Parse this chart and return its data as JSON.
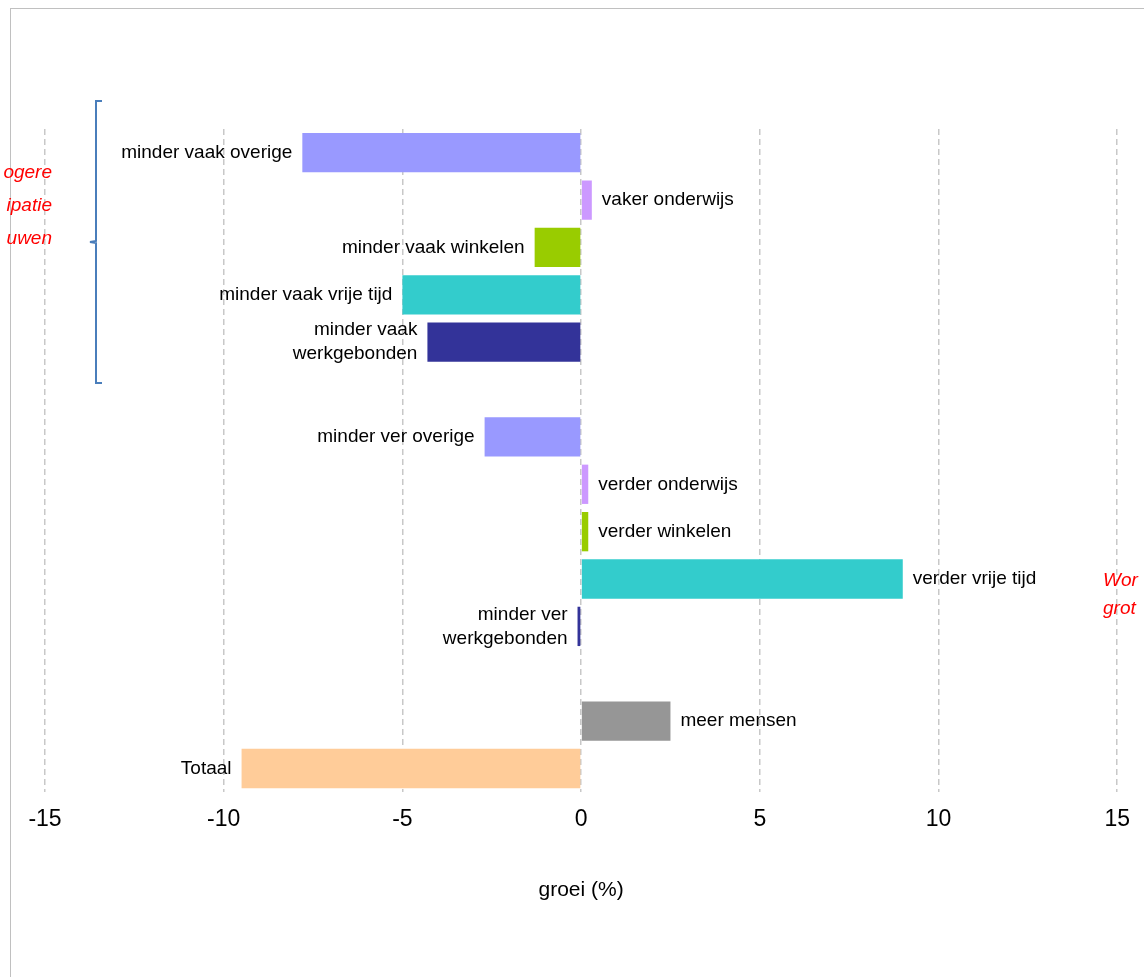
{
  "chart_data": {
    "type": "bar",
    "orientation": "horizontal",
    "xlabel": "groei (%)",
    "categories": [
      "minder vaak overige",
      "vaker onderwijs",
      "minder vaak winkelen",
      "minder vaak vrije tijd",
      "minder vaak werkgebonden",
      null,
      "minder ver overige",
      "verder onderwijs",
      "verder winkelen",
      "verder vrije tijd",
      "minder ver werkgebonden",
      null,
      "meer mensen",
      "Totaal"
    ],
    "values": [
      -7.8,
      0.3,
      -1.3,
      -5.0,
      -4.3,
      null,
      -2.7,
      0.2,
      0.2,
      9.0,
      -0.1,
      null,
      2.5,
      -9.5
    ],
    "colors": [
      "#9999ff",
      "#cc99ff",
      "#99cc00",
      "#33cccc",
      "#333399",
      "#ffffff",
      "#9999ff",
      "#cc99ff",
      "#99cc00",
      "#33cccc",
      "#333399",
      "#ffffff",
      "#969696",
      "#ffcc99"
    ],
    "xlim": [
      -15,
      15
    ],
    "xticks": [
      -15,
      -10,
      -5,
      0,
      5,
      10,
      15
    ],
    "grid": "x",
    "legend": false,
    "annotations": [
      "ogere",
      "ipatie",
      "uwen",
      "Wor",
      "grot"
    ]
  }
}
